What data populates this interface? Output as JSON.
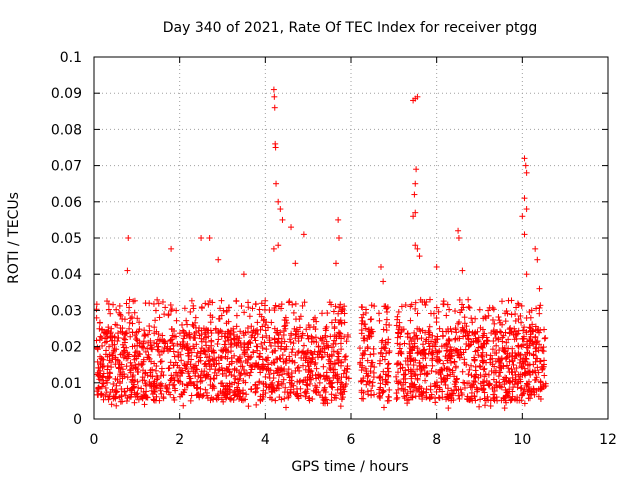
{
  "chart_data": {
    "type": "scatter",
    "title": "Day 340 of 2021, Rate Of TEC Index for receiver ptgg",
    "xlabel": "GPS time / hours",
    "ylabel": "ROTI / TECUs",
    "xlim": [
      0,
      12
    ],
    "ylim": [
      0,
      0.1
    ],
    "xticks": [
      "0",
      "2",
      "4",
      "6",
      "8",
      "10",
      "12"
    ],
    "yticks": [
      "0",
      "0.01",
      "0.02",
      "0.03",
      "0.04",
      "0.05",
      "0.06",
      "0.07",
      "0.08",
      "0.09",
      "0.1"
    ],
    "grid": true,
    "marker": "plus",
    "color": "#ff0000",
    "x_range_observed": [
      0.05,
      10.55
    ],
    "baseline_band": [
      0.005,
      0.025
    ],
    "spikes": [
      {
        "x": 0.8,
        "y": 0.05
      },
      {
        "x": 0.78,
        "y": 0.041
      },
      {
        "x": 1.8,
        "y": 0.047
      },
      {
        "x": 2.5,
        "y": 0.05
      },
      {
        "x": 2.7,
        "y": 0.05
      },
      {
        "x": 2.9,
        "y": 0.044
      },
      {
        "x": 3.5,
        "y": 0.04
      },
      {
        "x": 4.2,
        "y": 0.091
      },
      {
        "x": 4.21,
        "y": 0.089
      },
      {
        "x": 4.22,
        "y": 0.086
      },
      {
        "x": 4.23,
        "y": 0.076
      },
      {
        "x": 4.24,
        "y": 0.075
      },
      {
        "x": 4.25,
        "y": 0.065
      },
      {
        "x": 4.3,
        "y": 0.06
      },
      {
        "x": 4.35,
        "y": 0.058
      },
      {
        "x": 4.4,
        "y": 0.055
      },
      {
        "x": 4.2,
        "y": 0.047
      },
      {
        "x": 4.3,
        "y": 0.048
      },
      {
        "x": 4.6,
        "y": 0.053
      },
      {
        "x": 4.7,
        "y": 0.043
      },
      {
        "x": 4.9,
        "y": 0.051
      },
      {
        "x": 5.7,
        "y": 0.055
      },
      {
        "x": 5.72,
        "y": 0.05
      },
      {
        "x": 5.65,
        "y": 0.043
      },
      {
        "x": 6.7,
        "y": 0.042
      },
      {
        "x": 6.75,
        "y": 0.038
      },
      {
        "x": 7.45,
        "y": 0.088
      },
      {
        "x": 7.5,
        "y": 0.0885
      },
      {
        "x": 7.55,
        "y": 0.089
      },
      {
        "x": 7.52,
        "y": 0.069
      },
      {
        "x": 7.5,
        "y": 0.065
      },
      {
        "x": 7.48,
        "y": 0.062
      },
      {
        "x": 7.5,
        "y": 0.057
      },
      {
        "x": 7.45,
        "y": 0.056
      },
      {
        "x": 7.5,
        "y": 0.048
      },
      {
        "x": 7.55,
        "y": 0.047
      },
      {
        "x": 7.6,
        "y": 0.045
      },
      {
        "x": 8.0,
        "y": 0.042
      },
      {
        "x": 8.5,
        "y": 0.052
      },
      {
        "x": 8.52,
        "y": 0.05
      },
      {
        "x": 8.6,
        "y": 0.041
      },
      {
        "x": 10.05,
        "y": 0.072
      },
      {
        "x": 10.08,
        "y": 0.07
      },
      {
        "x": 10.1,
        "y": 0.068
      },
      {
        "x": 10.05,
        "y": 0.061
      },
      {
        "x": 10.1,
        "y": 0.058
      },
      {
        "x": 10.0,
        "y": 0.056
      },
      {
        "x": 10.05,
        "y": 0.051
      },
      {
        "x": 10.1,
        "y": 0.04
      },
      {
        "x": 10.3,
        "y": 0.047
      },
      {
        "x": 10.35,
        "y": 0.044
      },
      {
        "x": 10.4,
        "y": 0.036
      }
    ],
    "gaps": [
      [
        5.95,
        6.2
      ],
      [
        6.55,
        6.65
      ],
      [
        6.9,
        7.05
      ]
    ]
  }
}
